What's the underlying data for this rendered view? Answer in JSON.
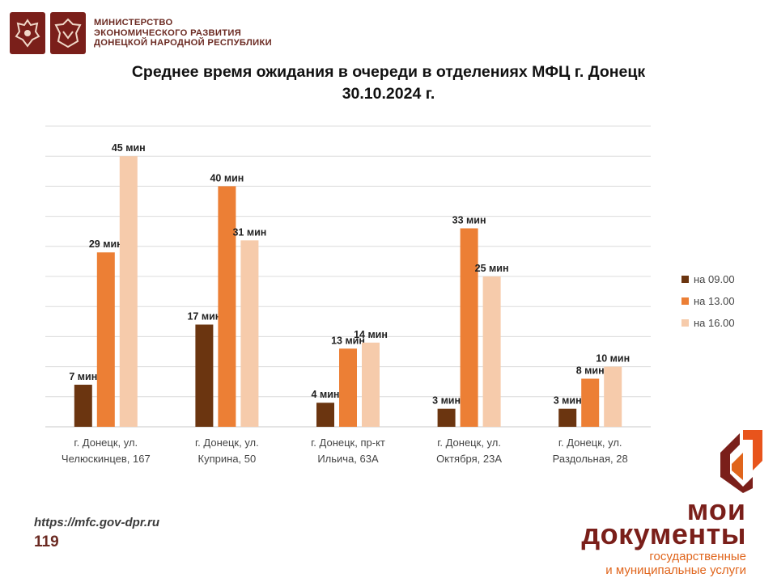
{
  "header": {
    "ministry_lines": [
      "МИНИСТЕРСТВО",
      "ЭКОНОМИЧЕСКОГО РАЗВИТИЯ",
      "ДОНЕЦКОЙ НАРОДНОЙ РЕСПУБЛИКИ"
    ]
  },
  "colors": {
    "series": [
      "#6b3510",
      "#ec7f35",
      "#f6cbab"
    ],
    "brand": "#7a1f1a",
    "accent": "#e0651c"
  },
  "chart_data": {
    "type": "bar",
    "title": "Среднее время ожидания в очереди в отделениях МФЦ г. Донецк",
    "subtitle": "30.10.2024 г.",
    "categories": [
      [
        "г. Донецк, ул.",
        "Челюскинцев, 167"
      ],
      [
        "г. Донецк, ул.",
        "Куприна, 50"
      ],
      [
        "г. Донецк, пр-кт",
        "Ильича, 63А"
      ],
      [
        "г. Донецк, ул.",
        "Октября, 23А"
      ],
      [
        "г. Донецк, ул.",
        "Раздольная, 28"
      ]
    ],
    "series": [
      {
        "name": "на 09.00",
        "values": [
          7,
          17,
          4,
          3,
          3
        ],
        "labels": [
          "7 мин",
          "17 мин",
          "4 мин",
          "3 мин",
          "3 мин"
        ]
      },
      {
        "name": "на 13.00",
        "values": [
          29,
          40,
          13,
          33,
          8
        ],
        "labels": [
          "29 мин",
          "40 мин",
          "13 мин",
          "33 мин",
          "8 мин"
        ]
      },
      {
        "name": "на 16.00",
        "values": [
          45,
          31,
          14,
          25,
          10
        ],
        "labels": [
          "45 мин",
          "31 мин",
          "14 мин",
          "25 мин",
          "10 мин"
        ]
      }
    ],
    "ylim": [
      0,
      50
    ],
    "grid": true,
    "legend": "right"
  },
  "footer": {
    "url": "https://mfc.gov-dpr.ru",
    "page_number": "119"
  },
  "brand": {
    "line1": "мои",
    "line2": "документы",
    "line3": "государственные",
    "line4": "и муниципальные услуги"
  }
}
